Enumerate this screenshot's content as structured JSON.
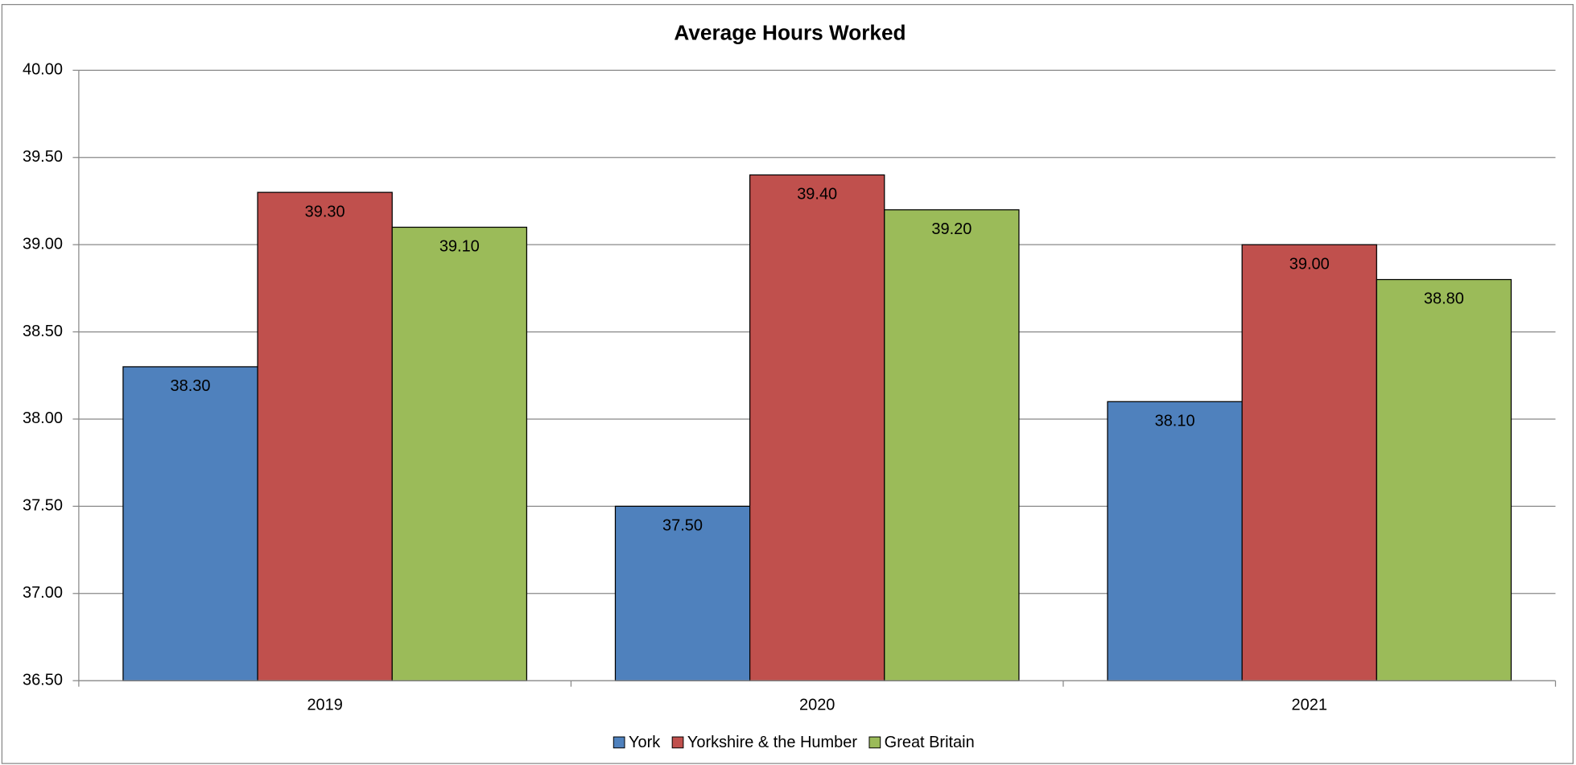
{
  "chart_data": {
    "type": "bar",
    "title": "Average Hours Worked",
    "categories": [
      "2019",
      "2020",
      "2021"
    ],
    "series": [
      {
        "name": "York",
        "color": "#4f81bd",
        "values": [
          38.3,
          37.5,
          38.1
        ],
        "value_labels": [
          "38.30",
          "37.50",
          "38.10"
        ]
      },
      {
        "name": "Yorkshire & the Humber",
        "color": "#c0504d",
        "values": [
          39.3,
          39.4,
          39.0
        ],
        "value_labels": [
          "39.30",
          "39.40",
          "39.00"
        ]
      },
      {
        "name": "Great Britain",
        "color": "#9bbb59",
        "values": [
          39.1,
          39.2,
          38.8
        ],
        "value_labels": [
          "39.10",
          "39.20",
          "38.80"
        ]
      }
    ],
    "ylim": [
      36.5,
      40.0
    ],
    "yticks": [
      {
        "value": 36.5,
        "label": "36.50"
      },
      {
        "value": 37.0,
        "label": "37.00"
      },
      {
        "value": 37.5,
        "label": "37.50"
      },
      {
        "value": 38.0,
        "label": "38.00"
      },
      {
        "value": 38.5,
        "label": "38.50"
      },
      {
        "value": 39.0,
        "label": "39.00"
      },
      {
        "value": 39.5,
        "label": "39.50"
      },
      {
        "value": 40.0,
        "label": "40.00"
      }
    ],
    "grid": true,
    "legend": "bottom"
  }
}
